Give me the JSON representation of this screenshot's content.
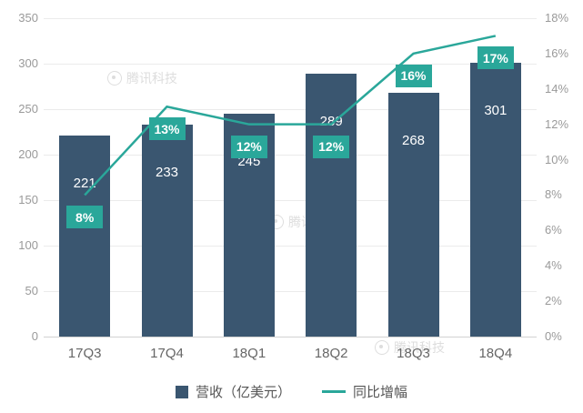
{
  "watermark": {
    "text": "腾讯科技"
  },
  "chart_data": {
    "type": "bar",
    "categories": [
      "17Q3",
      "17Q4",
      "18Q1",
      "18Q2",
      "18Q3",
      "18Q4"
    ],
    "series": [
      {
        "name": "营收（亿美元）",
        "type": "bar",
        "axis": "left",
        "color": "#3a5670",
        "values": [
          221,
          233,
          245,
          289,
          268,
          301
        ],
        "value_labels": [
          "221",
          "233",
          "245",
          "289",
          "268",
          "301"
        ]
      },
      {
        "name": "同比增幅",
        "type": "line",
        "axis": "right",
        "color": "#2aa79a",
        "values": [
          8,
          13,
          12,
          12,
          16,
          17
        ],
        "value_labels": [
          "8%",
          "13%",
          "12%",
          "12%",
          "16%",
          "17%"
        ]
      }
    ],
    "left_axis": {
      "min": 0,
      "max": 350,
      "step": 50
    },
    "right_axis": {
      "min": 0,
      "max": 18,
      "step": 2,
      "suffix": "%"
    },
    "grid": true,
    "legend_position": "bottom",
    "title": "",
    "xlabel": "",
    "ylabel": ""
  },
  "colors": {
    "bar": "#3a5670",
    "line": "#2aa79a",
    "axis_text": "#9a9a9a",
    "grid": "#ebebeb",
    "x_label": "#666666",
    "value_text": "#ffffff"
  }
}
